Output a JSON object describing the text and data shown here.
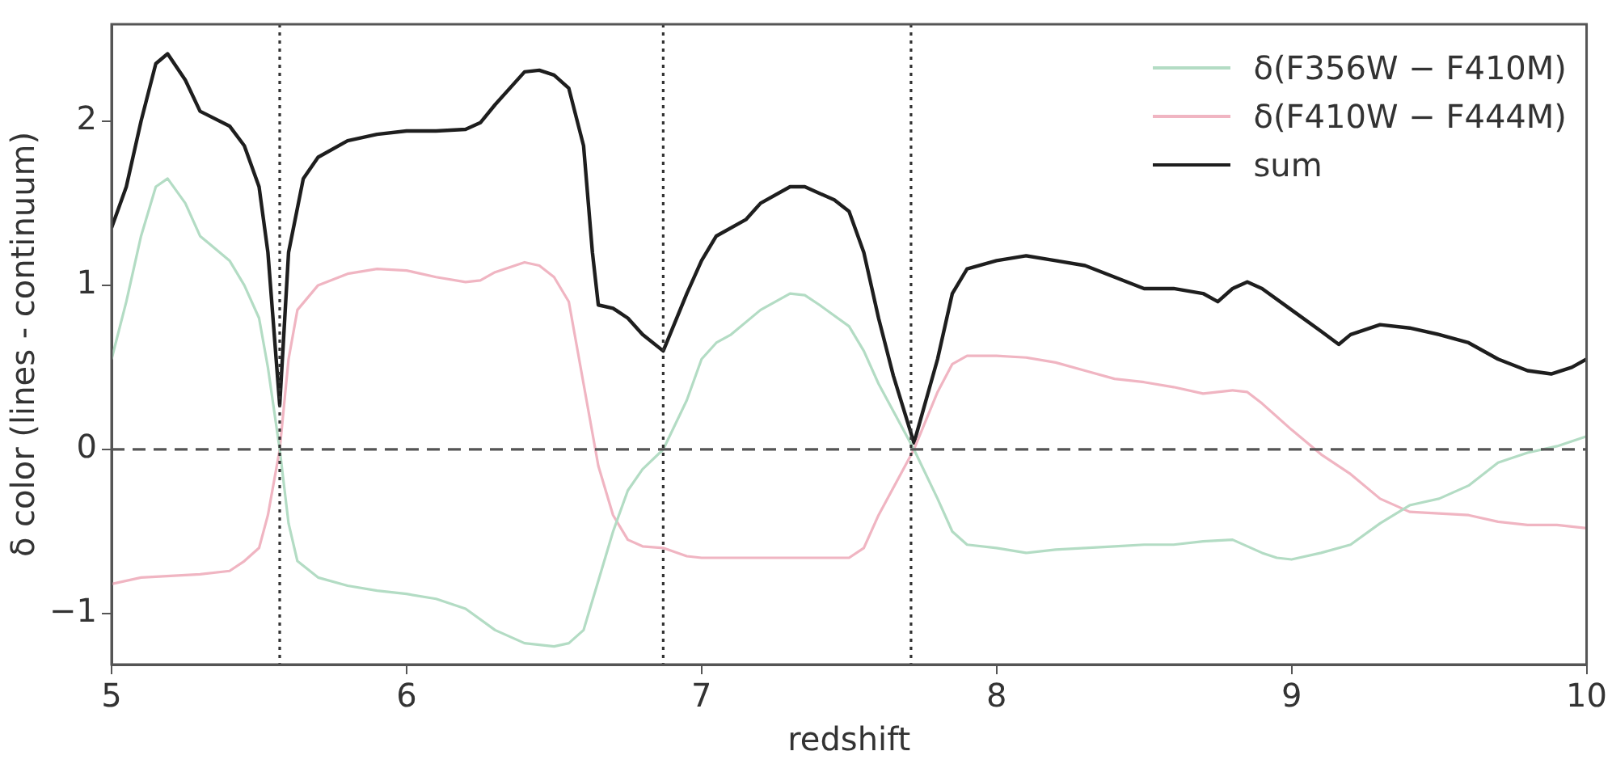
{
  "chart_data": {
    "type": "line",
    "xlabel": "redshift",
    "ylabel": "δ color (lines - continuum)",
    "xlim": [
      5,
      10
    ],
    "xticks": [
      5,
      6,
      7,
      8,
      9,
      10
    ],
    "ylim": [
      -1.31,
      2.59
    ],
    "yticks": [
      -1,
      0,
      1,
      2
    ],
    "grid": false,
    "legend": "top right",
    "line_style": "solid",
    "marker": "none",
    "series": [
      {
        "name": "δ(F356W − F410M)",
        "color": "#b3dcc4",
        "x": [
          5.0,
          5.05,
          5.1,
          5.15,
          5.19,
          5.25,
          5.3,
          5.4,
          5.45,
          5.5,
          5.53,
          5.57,
          5.6,
          5.63,
          5.7,
          5.8,
          5.9,
          6.0,
          6.1,
          6.2,
          6.3,
          6.4,
          6.5,
          6.55,
          6.6,
          6.65,
          6.7,
          6.75,
          6.8,
          6.87,
          6.95,
          7.0,
          7.05,
          7.1,
          7.2,
          7.3,
          7.35,
          7.4,
          7.5,
          7.55,
          7.6,
          7.72,
          7.8,
          7.85,
          7.9,
          8.0,
          8.1,
          8.2,
          8.3,
          8.4,
          8.5,
          8.6,
          8.7,
          8.8,
          8.9,
          8.95,
          9.0,
          9.1,
          9.2,
          9.3,
          9.4,
          9.5,
          9.6,
          9.7,
          9.8,
          9.9,
          10.0
        ],
        "values": [
          0.55,
          0.9,
          1.3,
          1.6,
          1.65,
          1.5,
          1.3,
          1.15,
          1.0,
          0.8,
          0.5,
          0.0,
          -0.45,
          -0.68,
          -0.78,
          -0.83,
          -0.86,
          -0.88,
          -0.91,
          -0.97,
          -1.1,
          -1.18,
          -1.2,
          -1.18,
          -1.1,
          -0.8,
          -0.5,
          -0.25,
          -0.12,
          0.0,
          0.3,
          0.55,
          0.65,
          0.7,
          0.85,
          0.95,
          0.94,
          0.88,
          0.75,
          0.6,
          0.4,
          0.0,
          -0.3,
          -0.5,
          -0.58,
          -0.6,
          -0.63,
          -0.61,
          -0.6,
          -0.59,
          -0.58,
          -0.58,
          -0.56,
          -0.55,
          -0.63,
          -0.66,
          -0.67,
          -0.63,
          -0.58,
          -0.45,
          -0.34,
          -0.3,
          -0.22,
          -0.08,
          -0.02,
          0.02,
          0.08
        ]
      },
      {
        "name": "δ(F410W − F444M)",
        "color": "#f0b5c2",
        "x": [
          5.0,
          5.1,
          5.2,
          5.3,
          5.4,
          5.45,
          5.5,
          5.53,
          5.57,
          5.6,
          5.63,
          5.7,
          5.8,
          5.9,
          6.0,
          6.1,
          6.2,
          6.25,
          6.3,
          6.4,
          6.45,
          6.5,
          6.55,
          6.6,
          6.65,
          6.7,
          6.75,
          6.8,
          6.87,
          6.95,
          7.0,
          7.2,
          7.4,
          7.5,
          7.55,
          7.6,
          7.72,
          7.8,
          7.85,
          7.9,
          8.0,
          8.1,
          8.2,
          8.3,
          8.4,
          8.5,
          8.6,
          8.7,
          8.8,
          8.85,
          8.9,
          9.0,
          9.1,
          9.2,
          9.3,
          9.4,
          9.5,
          9.6,
          9.7,
          9.8,
          9.9,
          10.0
        ],
        "values": [
          -0.82,
          -0.78,
          -0.77,
          -0.76,
          -0.74,
          -0.68,
          -0.6,
          -0.4,
          0.0,
          0.55,
          0.85,
          1.0,
          1.07,
          1.1,
          1.09,
          1.05,
          1.02,
          1.03,
          1.08,
          1.14,
          1.12,
          1.05,
          0.9,
          0.4,
          -0.1,
          -0.4,
          -0.55,
          -0.59,
          -0.6,
          -0.65,
          -0.66,
          -0.66,
          -0.66,
          -0.66,
          -0.6,
          -0.4,
          0.0,
          0.35,
          0.52,
          0.57,
          0.57,
          0.56,
          0.53,
          0.48,
          0.43,
          0.41,
          0.38,
          0.34,
          0.36,
          0.35,
          0.28,
          0.12,
          -0.03,
          -0.15,
          -0.3,
          -0.38,
          -0.39,
          -0.4,
          -0.44,
          -0.46,
          -0.46,
          -0.48
        ]
      },
      {
        "name": "sum",
        "color": "#1e1e1e",
        "x": [
          5.0,
          5.05,
          5.1,
          5.15,
          5.19,
          5.25,
          5.3,
          5.4,
          5.45,
          5.5,
          5.53,
          5.57,
          5.6,
          5.65,
          5.7,
          5.8,
          5.9,
          6.0,
          6.1,
          6.2,
          6.25,
          6.3,
          6.4,
          6.45,
          6.5,
          6.55,
          6.6,
          6.63,
          6.65,
          6.7,
          6.75,
          6.8,
          6.87,
          6.95,
          7.0,
          7.05,
          7.15,
          7.2,
          7.3,
          7.35,
          7.45,
          7.5,
          7.55,
          7.6,
          7.65,
          7.72,
          7.8,
          7.85,
          7.9,
          8.0,
          8.1,
          8.2,
          8.3,
          8.4,
          8.5,
          8.6,
          8.7,
          8.75,
          8.8,
          8.85,
          8.9,
          9.0,
          9.1,
          9.16,
          9.2,
          9.3,
          9.4,
          9.5,
          9.6,
          9.7,
          9.8,
          9.88,
          9.95,
          10.0
        ],
        "values": [
          1.35,
          1.6,
          2.0,
          2.35,
          2.41,
          2.25,
          2.06,
          1.97,
          1.85,
          1.6,
          1.2,
          0.27,
          1.2,
          1.65,
          1.78,
          1.88,
          1.92,
          1.94,
          1.94,
          1.95,
          1.99,
          2.1,
          2.3,
          2.31,
          2.28,
          2.2,
          1.85,
          1.2,
          0.88,
          0.86,
          0.8,
          0.7,
          0.6,
          0.95,
          1.15,
          1.3,
          1.4,
          1.5,
          1.6,
          1.6,
          1.52,
          1.45,
          1.2,
          0.8,
          0.45,
          0.04,
          0.55,
          0.95,
          1.1,
          1.15,
          1.18,
          1.15,
          1.12,
          1.05,
          0.98,
          0.98,
          0.95,
          0.9,
          0.98,
          1.02,
          0.98,
          0.85,
          0.72,
          0.64,
          0.7,
          0.76,
          0.74,
          0.7,
          0.65,
          0.55,
          0.48,
          0.46,
          0.5,
          0.55
        ]
      }
    ],
    "ref_lines": [
      {
        "axis": "y",
        "value": 0,
        "color": "#555555",
        "line_style": "dashed"
      },
      {
        "axis": "x",
        "value": 5.57,
        "color": "#333333",
        "line_style": "dotted"
      },
      {
        "axis": "x",
        "value": 6.87,
        "color": "#333333",
        "line_style": "dotted"
      },
      {
        "axis": "x",
        "value": 7.71,
        "color": "#333333",
        "line_style": "dotted"
      }
    ]
  }
}
